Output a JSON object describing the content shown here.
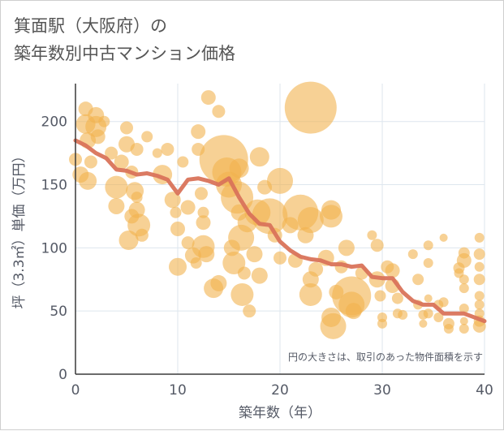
{
  "title": {
    "line1": "箕面駅（大阪府）の",
    "line2": "築年数別中古マンション価格"
  },
  "chart_data": {
    "type": "scatter",
    "xlabel": "築年数（年）",
    "ylabel": "坪（3.3㎡）単価（万円）",
    "xlim": [
      0,
      40
    ],
    "ylim": [
      0,
      230
    ],
    "xticks": [
      0,
      10,
      20,
      30,
      40
    ],
    "yticks": [
      0,
      50,
      100,
      150,
      200
    ],
    "grid": true,
    "annotation": "円の大きさは、取引のあった物件面積を示す",
    "colors": {
      "bubble": "#f2b24e",
      "line": "#d9735a"
    },
    "points": [
      [
        0,
        170,
        8
      ],
      [
        0.5,
        158,
        10
      ],
      [
        1,
        210,
        9
      ],
      [
        1,
        198,
        12
      ],
      [
        1.2,
        185,
        10
      ],
      [
        1.5,
        168,
        8
      ],
      [
        1.2,
        153,
        11
      ],
      [
        2,
        205,
        10
      ],
      [
        2,
        196,
        13
      ],
      [
        2.2,
        188,
        9
      ],
      [
        2.8,
        200,
        7
      ],
      [
        3.5,
        175,
        8
      ],
      [
        4,
        148,
        14
      ],
      [
        4,
        133,
        10
      ],
      [
        4.5,
        168,
        9
      ],
      [
        5,
        195,
        8
      ],
      [
        5,
        182,
        10
      ],
      [
        5.5,
        160,
        8
      ],
      [
        5.8,
        145,
        11
      ],
      [
        5.5,
        125,
        9
      ],
      [
        5.2,
        106,
        12
      ],
      [
        6,
        140,
        7
      ],
      [
        6,
        130,
        10
      ],
      [
        6.2,
        118,
        14
      ],
      [
        6.5,
        110,
        8
      ],
      [
        6,
        178,
        8
      ],
      [
        7,
        188,
        7
      ],
      [
        8,
        175,
        6
      ],
      [
        8.5,
        158,
        12
      ],
      [
        9,
        178,
        8
      ],
      [
        9.5,
        138,
        10
      ],
      [
        9.8,
        128,
        7
      ],
      [
        10,
        115,
        9
      ],
      [
        10,
        85,
        11
      ],
      [
        10.5,
        168,
        7
      ],
      [
        11,
        132,
        9
      ],
      [
        11,
        104,
        8
      ],
      [
        11.5,
        94,
        10
      ],
      [
        11.8,
        88,
        7
      ],
      [
        12,
        192,
        9
      ],
      [
        12,
        178,
        8
      ],
      [
        12.3,
        143,
        8
      ],
      [
        12.5,
        128,
        7
      ],
      [
        12.5,
        120,
        9
      ],
      [
        12.5,
        101,
        14
      ],
      [
        12.8,
        95,
        10
      ],
      [
        13,
        219,
        9
      ],
      [
        13.5,
        68,
        12
      ],
      [
        14,
        72,
        10
      ],
      [
        14,
        208,
        8
      ],
      [
        14.5,
        170,
        30
      ],
      [
        14.8,
        160,
        18
      ],
      [
        15,
        150,
        16
      ],
      [
        15.3,
        100,
        10
      ],
      [
        15.5,
        88,
        14
      ],
      [
        15.8,
        140,
        20
      ],
      [
        16,
        163,
        12
      ],
      [
        16,
        128,
        10
      ],
      [
        16.2,
        108,
        16
      ],
      [
        16.3,
        63,
        14
      ],
      [
        16.5,
        80,
        8
      ],
      [
        16.8,
        120,
        12
      ],
      [
        17,
        50,
        8
      ],
      [
        17.5,
        95,
        10
      ],
      [
        17.8,
        128,
        16
      ],
      [
        18,
        172,
        12
      ],
      [
        18,
        78,
        10
      ],
      [
        18.5,
        148,
        9
      ],
      [
        19,
        125,
        22
      ],
      [
        19.5,
        110,
        9
      ],
      [
        20,
        153,
        16
      ],
      [
        20,
        92,
        8
      ],
      [
        21,
        118,
        10
      ],
      [
        21.5,
        90,
        9
      ],
      [
        22,
        128,
        22
      ],
      [
        22.5,
        110,
        10
      ],
      [
        23,
        211,
        32
      ],
      [
        23,
        122,
        16
      ],
      [
        23,
        75,
        10
      ],
      [
        23,
        63,
        14
      ],
      [
        23.5,
        83,
        9
      ],
      [
        24.5,
        92,
        10
      ],
      [
        25,
        130,
        12
      ],
      [
        25,
        125,
        14
      ],
      [
        25,
        45,
        12
      ],
      [
        25.2,
        38,
        16
      ],
      [
        25.5,
        65,
        9
      ],
      [
        26,
        85,
        8
      ],
      [
        26.5,
        100,
        10
      ],
      [
        27,
        62,
        24
      ],
      [
        27,
        55,
        16
      ],
      [
        27.2,
        50,
        10
      ],
      [
        28,
        80,
        8
      ],
      [
        29,
        110,
        6
      ],
      [
        29.5,
        102,
        8
      ],
      [
        29.5,
        75,
        10
      ],
      [
        29.8,
        62,
        7
      ],
      [
        30,
        45,
        6
      ],
      [
        30,
        40,
        6
      ],
      [
        30.5,
        85,
        8
      ],
      [
        31,
        82,
        9
      ],
      [
        31,
        70,
        9
      ],
      [
        31.5,
        60,
        7
      ],
      [
        31.5,
        48,
        6
      ],
      [
        32,
        47,
        6
      ],
      [
        33,
        95,
        6
      ],
      [
        33.5,
        75,
        7
      ],
      [
        33.5,
        55,
        6
      ],
      [
        34,
        47,
        6
      ],
      [
        34,
        40,
        5
      ],
      [
        34.5,
        102,
        6
      ],
      [
        34.5,
        88,
        6
      ],
      [
        34.5,
        60,
        5
      ],
      [
        34.5,
        48,
        6
      ],
      [
        35.5,
        45,
        6
      ],
      [
        35.5,
        55,
        6
      ],
      [
        36,
        108,
        5
      ],
      [
        36,
        57,
        6
      ],
      [
        36.5,
        40,
        7
      ],
      [
        36.5,
        36,
        6
      ],
      [
        37.5,
        84,
        7
      ],
      [
        37.5,
        80,
        6
      ],
      [
        38,
        96,
        7
      ],
      [
        38,
        90,
        9
      ],
      [
        38,
        75,
        6
      ],
      [
        38,
        68,
        6
      ],
      [
        38,
        52,
        6
      ],
      [
        38,
        42,
        5
      ],
      [
        38,
        36,
        6
      ],
      [
        39.5,
        108,
        6
      ],
      [
        39.5,
        95,
        7
      ],
      [
        39.5,
        85,
        6
      ],
      [
        39.5,
        75,
        7
      ],
      [
        39.5,
        62,
        6
      ],
      [
        39.5,
        55,
        6
      ],
      [
        39.5,
        48,
        6
      ],
      [
        39.5,
        42,
        7
      ],
      [
        39.5,
        38,
        8
      ]
    ],
    "series": [
      {
        "x": [
          0,
          1,
          2,
          3,
          4,
          5,
          6,
          7,
          8,
          9,
          10,
          11,
          12,
          13,
          14,
          15,
          16,
          17,
          18,
          19,
          20,
          21,
          22,
          23,
          24,
          25,
          26,
          27,
          28,
          29,
          30,
          31,
          32,
          33,
          34,
          35,
          36,
          37,
          38,
          39,
          40
        ],
        "y": [
          185,
          181,
          175,
          171,
          162,
          161,
          158,
          159,
          157,
          154,
          143,
          154,
          155,
          153,
          150,
          155,
          140,
          127,
          119,
          118,
          105,
          98,
          93,
          91,
          90,
          87,
          87,
          85,
          86,
          77,
          76,
          76,
          65,
          58,
          55,
          55,
          48,
          48,
          48,
          45,
          42
        ]
      }
    ]
  }
}
